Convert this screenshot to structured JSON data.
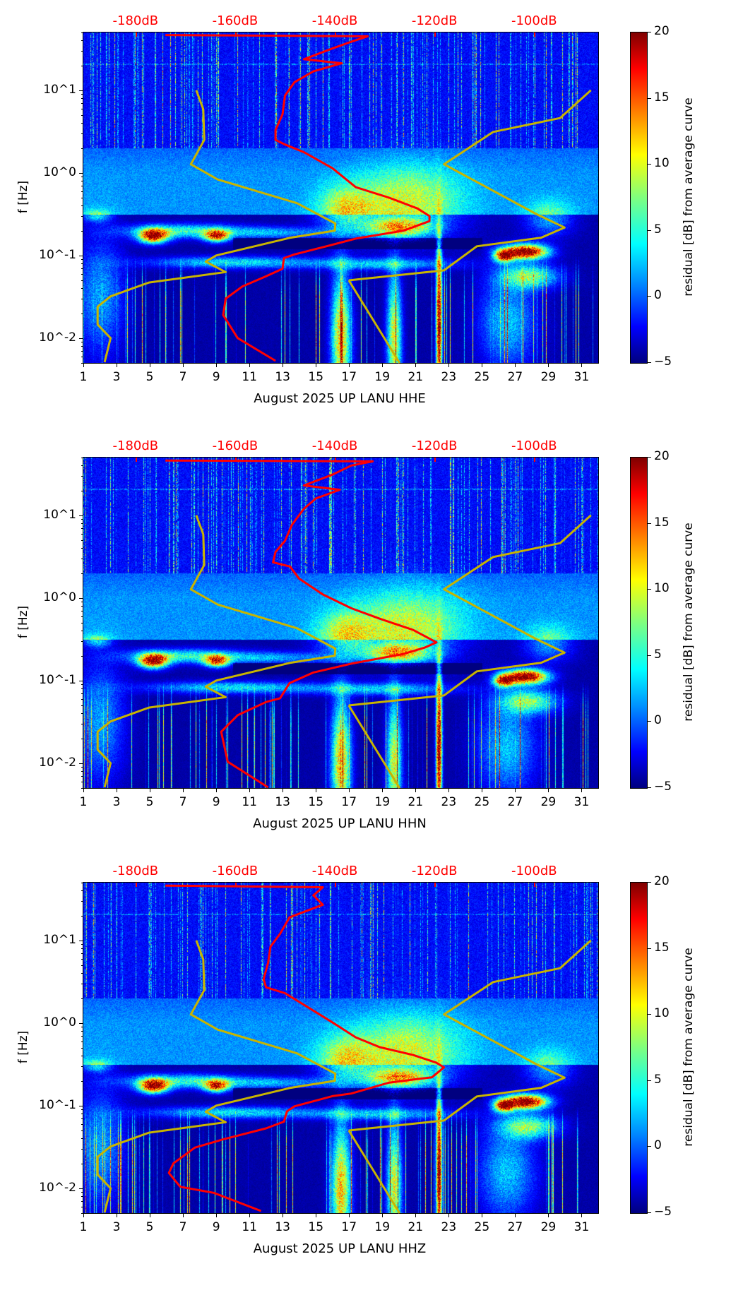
{
  "chart_data": {
    "type": "heatmap",
    "y_axis": {
      "label": "f [Hz]",
      "scale": "log",
      "range": [
        0.005,
        50
      ],
      "tick_values": [
        10,
        1,
        0.1,
        0.01
      ],
      "tick_labels": [
        "10^1",
        "10^0",
        "10^-1",
        "10^-2"
      ]
    },
    "x_axis": {
      "range": [
        1,
        32
      ],
      "tick_labels": [
        "1",
        "3",
        "5",
        "7",
        "9",
        "11",
        "13",
        "15",
        "17",
        "19",
        "21",
        "23",
        "25",
        "27",
        "29",
        "31"
      ]
    },
    "top_axis": {
      "color": "#ff0000",
      "tick_labels": [
        "-180dB",
        "-160dB",
        "-140dB",
        "-120dB",
        "-100dB"
      ],
      "tick_values_db": [
        -180,
        -160,
        -140,
        -120,
        -100
      ],
      "db_per_day": 3.333,
      "day_at_minus_180db": 4.14
    },
    "colorbar": {
      "label": "residual [dB] from average curve",
      "range": [
        -5,
        20
      ],
      "tick_labels": [
        "20",
        "15",
        "10",
        "5",
        "0",
        "−5"
      ],
      "tick_values": [
        20,
        15,
        10,
        5,
        0,
        -5
      ],
      "colormap": "jet"
    },
    "reference_curves_color": "#c8b400",
    "reference_curves_db_f": [
      [
        [
          -167.8,
          10
        ],
        [
          -166.4,
          5.9
        ],
        [
          -166.2,
          2.5
        ],
        [
          -168.9,
          1.27
        ],
        [
          -163.5,
          0.83
        ],
        [
          -147.6,
          0.43
        ],
        [
          -139.9,
          0.244
        ],
        [
          -140.0,
          0.2
        ],
        [
          -148.9,
          0.164
        ],
        [
          -163.8,
          0.1
        ],
        [
          -165.9,
          0.084
        ],
        [
          -161.9,
          0.063
        ],
        [
          -177.3,
          0.047
        ],
        [
          -185.0,
          0.032
        ],
        [
          -187.6,
          0.024
        ],
        [
          -187.6,
          0.0146
        ],
        [
          -185.0,
          0.01
        ],
        [
          -186.2,
          0.0051
        ]
      ],
      [
        [
          -137.2,
          0.05
        ],
        [
          -127.0,
          0.005
        ]
      ],
      [
        [
          -137.2,
          0.05
        ],
        [
          -118.1,
          0.066
        ],
        [
          -111.5,
          0.129
        ],
        [
          -98.6,
          0.164
        ],
        [
          -93.9,
          0.218
        ],
        [
          -99.6,
          0.318
        ],
        [
          -118.1,
          1.27
        ],
        [
          -108.2,
          3.13
        ],
        [
          -94.8,
          4.6
        ],
        [
          -88.6,
          10
        ]
      ]
    ],
    "red_curve_color": "#ff0000",
    "panels": [
      {
        "xlabel": "August 2025 UP LANU  HHE",
        "red_curve_db_f": [
          [
            -174.0,
            46.6
          ],
          [
            -133.4,
            45
          ],
          [
            -136.7,
            38.6
          ],
          [
            -140.5,
            32
          ],
          [
            -146.2,
            23.7
          ],
          [
            -138.6,
            21.2
          ],
          [
            -144.3,
            16.9
          ],
          [
            -148.1,
            12.5
          ],
          [
            -150.0,
            8.6
          ],
          [
            -150.5,
            5.1
          ],
          [
            -151.9,
            3.3
          ],
          [
            -151.9,
            2.5
          ],
          [
            -150.0,
            2.2
          ],
          [
            -146.2,
            1.78
          ],
          [
            -140.5,
            1.14
          ],
          [
            -135.8,
            0.67
          ],
          [
            -129.1,
            0.5
          ],
          [
            -123.4,
            0.37
          ],
          [
            -121.0,
            0.3
          ],
          [
            -121.0,
            0.26
          ],
          [
            -126.2,
            0.2
          ],
          [
            -135.8,
            0.16
          ],
          [
            -141.5,
            0.13
          ],
          [
            -148.1,
            0.103
          ],
          [
            -150.2,
            0.093
          ],
          [
            -150.5,
            0.069
          ],
          [
            -153.8,
            0.056
          ],
          [
            -158.6,
            0.042
          ],
          [
            -161.9,
            0.03
          ],
          [
            -162.4,
            0.019
          ],
          [
            -159.5,
            0.01
          ],
          [
            -151.9,
            0.0053
          ]
        ]
      },
      {
        "xlabel": "August 2025 UP LANU  HHN",
        "red_curve_db_f": [
          [
            -174.0,
            46
          ],
          [
            -132.4,
            45
          ],
          [
            -136.7,
            40
          ],
          [
            -140.5,
            31
          ],
          [
            -146.2,
            23
          ],
          [
            -139.0,
            20.4
          ],
          [
            -143.8,
            16
          ],
          [
            -146.2,
            12
          ],
          [
            -148.6,
            7.7
          ],
          [
            -150.0,
            4.9
          ],
          [
            -151.9,
            3.6
          ],
          [
            -152.4,
            2.7
          ],
          [
            -149.0,
            2.4
          ],
          [
            -147.2,
            1.72
          ],
          [
            -142.4,
            1.1
          ],
          [
            -136.7,
            0.75
          ],
          [
            -131.0,
            0.56
          ],
          [
            -124.3,
            0.41
          ],
          [
            -119.6,
            0.29
          ],
          [
            -122.0,
            0.25
          ],
          [
            -126.2,
            0.21
          ],
          [
            -136.7,
            0.16
          ],
          [
            -144.3,
            0.125
          ],
          [
            -149.1,
            0.093
          ],
          [
            -151.0,
            0.061
          ],
          [
            -153.8,
            0.055
          ],
          [
            -159.5,
            0.038
          ],
          [
            -162.8,
            0.024
          ],
          [
            -161.5,
            0.0104
          ],
          [
            -153.4,
            0.0051
          ]
        ]
      },
      {
        "xlabel": "August 2025 UP LANU  HHZ",
        "red_curve_db_f": [
          [
            -174.0,
            46
          ],
          [
            -142.4,
            44
          ],
          [
            -144.3,
            35
          ],
          [
            -142.4,
            27
          ],
          [
            -149.1,
            19
          ],
          [
            -151.0,
            12
          ],
          [
            -152.9,
            8.4
          ],
          [
            -153.4,
            5.3
          ],
          [
            -154.3,
            3.4
          ],
          [
            -153.8,
            2.7
          ],
          [
            -150.0,
            2.3
          ],
          [
            -146.2,
            1.66
          ],
          [
            -140.5,
            1.02
          ],
          [
            -135.8,
            0.67
          ],
          [
            -131.0,
            0.51
          ],
          [
            -124.3,
            0.41
          ],
          [
            -119.6,
            0.33
          ],
          [
            -118.1,
            0.29
          ],
          [
            -120.5,
            0.22
          ],
          [
            -123.4,
            0.21
          ],
          [
            -129.1,
            0.19
          ],
          [
            -136.7,
            0.14
          ],
          [
            -140.5,
            0.13
          ],
          [
            -148.1,
            0.098
          ],
          [
            -149.6,
            0.085
          ],
          [
            -150.2,
            0.064
          ],
          [
            -153.8,
            0.053
          ],
          [
            -162.4,
            0.039
          ],
          [
            -168.1,
            0.031
          ],
          [
            -172.4,
            0.02
          ],
          [
            -173.3,
            0.0153
          ],
          [
            -171.0,
            0.0104
          ],
          [
            -164.3,
            0.0088
          ],
          [
            -154.8,
            0.0053
          ]
        ]
      }
    ]
  }
}
